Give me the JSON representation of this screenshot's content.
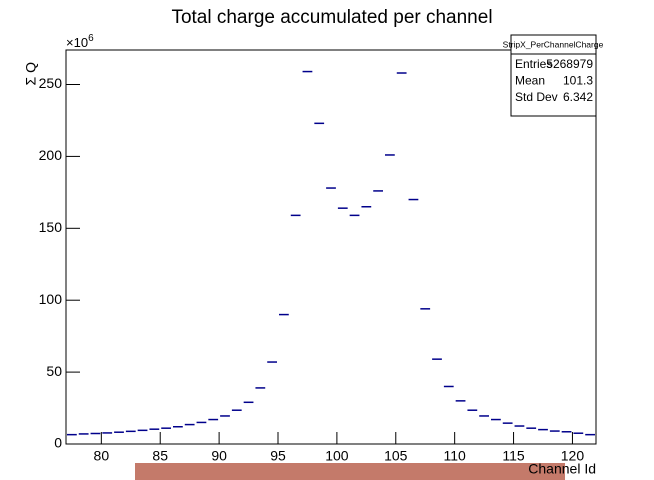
{
  "chart_data": {
    "type": "histogram",
    "title": "Total charge accumulated per channel",
    "x_label": "Channel Id",
    "y_label": "Σ Q",
    "y_multiplier": {
      "base": "×10",
      "exponent": "6"
    },
    "bins": [
      77,
      78,
      79,
      80,
      81,
      82,
      83,
      84,
      85,
      86,
      87,
      88,
      89,
      90,
      91,
      92,
      93,
      94,
      95,
      96,
      97,
      98,
      99,
      100,
      101,
      102,
      103,
      104,
      105,
      106,
      107,
      108,
      109,
      110,
      111,
      112,
      113,
      114,
      115,
      116,
      117,
      118,
      119,
      120,
      121,
      122
    ],
    "values": [
      6.5,
      7,
      7.3,
      7.7,
      8.2,
      8.8,
      9.5,
      10.3,
      11,
      12,
      13.5,
      15,
      17,
      19.5,
      23.5,
      29,
      39,
      57,
      90,
      159,
      259,
      223,
      178,
      164,
      159,
      165,
      176,
      201,
      258,
      170,
      94,
      59,
      40,
      30,
      23.5,
      19.5,
      17,
      14.5,
      12.5,
      11,
      10,
      9,
      8.5,
      7.5,
      6.5
    ],
    "color": "#00008b",
    "xlim": [
      77,
      122
    ],
    "xticks": [
      80,
      85,
      90,
      95,
      100,
      105,
      110,
      115,
      120
    ],
    "ylim": [
      0,
      274
    ],
    "yticks": [
      0,
      50,
      100,
      150,
      200,
      250
    ],
    "stats": {
      "title": "StripX_PerChannelCharge",
      "rows": [
        [
          "Entries",
          "5268979"
        ],
        [
          "Mean",
          "101.3"
        ],
        [
          "Std Dev",
          "6.342"
        ]
      ]
    }
  }
}
